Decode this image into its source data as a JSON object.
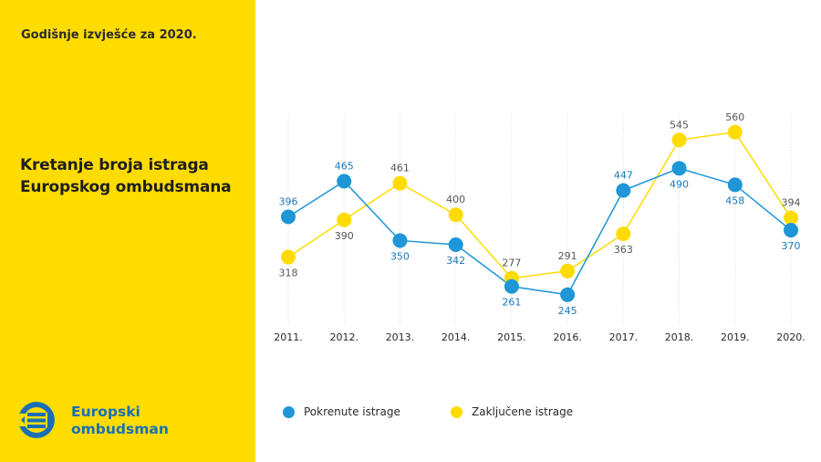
{
  "sidebar": {
    "report_label": "Godišnje izvješće za 2020.",
    "title_line1": "Kretanje broja istraga",
    "title_line2": "Europskog ombudsmana",
    "logo_icon": "european-ombudsman-logo",
    "logo_line1": "Europski",
    "logo_line2": "ombudsman"
  },
  "colors": {
    "panel": "#FFDC00",
    "blue": "#1E96D7",
    "yellow": "#FFDC00",
    "label_blue": "#1A78B8",
    "label_gray": "#555555",
    "grid": "#dddddd"
  },
  "chart_data": {
    "type": "line",
    "title": "Kretanje broja istraga Europskog ombudsmana",
    "xlabel": "",
    "ylabel": "",
    "categories": [
      "2011.",
      "2012.",
      "2013.",
      "2014.",
      "2015.",
      "2016.",
      "2017.",
      "2018.",
      "2019.",
      "2020."
    ],
    "ylim": [
      188,
      595
    ],
    "grid": "vertical",
    "legend_position": "bottom",
    "series": [
      {
        "name": "Pokrenute istrage",
        "color": "#1E96D7",
        "values": [
          396,
          465,
          350,
          342,
          261,
          245,
          447,
          490,
          458,
          370
        ],
        "label_positions": [
          "above",
          "above",
          "below",
          "below",
          "below",
          "below",
          "above",
          "below",
          "below",
          "below"
        ]
      },
      {
        "name": "Zaključene istrage",
        "color": "#FFDC00",
        "values": [
          318,
          390,
          461,
          400,
          277,
          291,
          363,
          545,
          560,
          394
        ],
        "label_positions": [
          "below",
          "below",
          "above",
          "above",
          "above",
          "above",
          "below",
          "above",
          "above",
          "above"
        ]
      }
    ]
  }
}
